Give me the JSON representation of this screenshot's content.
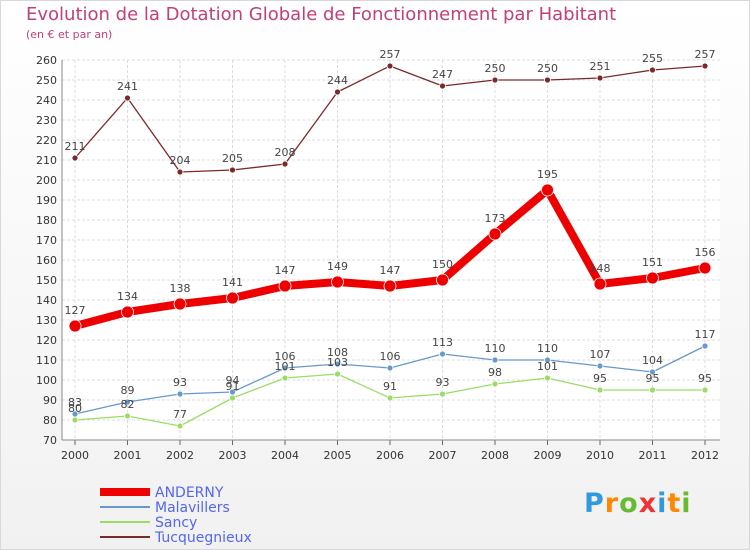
{
  "chart_data": {
    "type": "line",
    "title": "Evolution de la Dotation Globale de Fonctionnement par Habitant",
    "subtitle": "(en € et par an)",
    "xlabel": "",
    "ylabel": "",
    "ylim": [
      70,
      260
    ],
    "yticks": [
      70,
      80,
      90,
      100,
      110,
      120,
      130,
      140,
      150,
      160,
      170,
      180,
      190,
      200,
      210,
      220,
      230,
      240,
      250,
      260
    ],
    "categories": [
      "2000",
      "2001",
      "2002",
      "2003",
      "2004",
      "2005",
      "2006",
      "2007",
      "2008",
      "2009",
      "2010",
      "2011",
      "2012"
    ],
    "grid": true,
    "legend_position": "bottom-left",
    "series": [
      {
        "name": "ANDERNY",
        "color": "#ee0000",
        "values": [
          127,
          134,
          138,
          141,
          147,
          149,
          147,
          150,
          173,
          195,
          148,
          151,
          156
        ]
      },
      {
        "name": "Malavillers",
        "color": "#6699cc",
        "values": [
          83,
          89,
          93,
          94,
          106,
          108,
          106,
          113,
          110,
          110,
          107,
          104,
          117
        ]
      },
      {
        "name": "Sancy",
        "color": "#99dd66",
        "values": [
          80,
          82,
          77,
          91,
          101,
          103,
          91,
          93,
          98,
          101,
          95,
          95,
          95
        ]
      },
      {
        "name": "Tucquegnieux",
        "color": "#7a2a2a",
        "values": [
          211,
          241,
          204,
          205,
          208,
          244,
          257,
          247,
          250,
          250,
          251,
          255,
          257
        ]
      }
    ]
  },
  "branding": {
    "logo_letters": [
      "P",
      "r",
      "o",
      "x",
      "i",
      "t",
      "i"
    ],
    "logo_colors": [
      "#3399dd",
      "#ff8800",
      "#66bb33",
      "#ee3333",
      "#3399dd",
      "#ff8800",
      "#66bb33"
    ]
  }
}
